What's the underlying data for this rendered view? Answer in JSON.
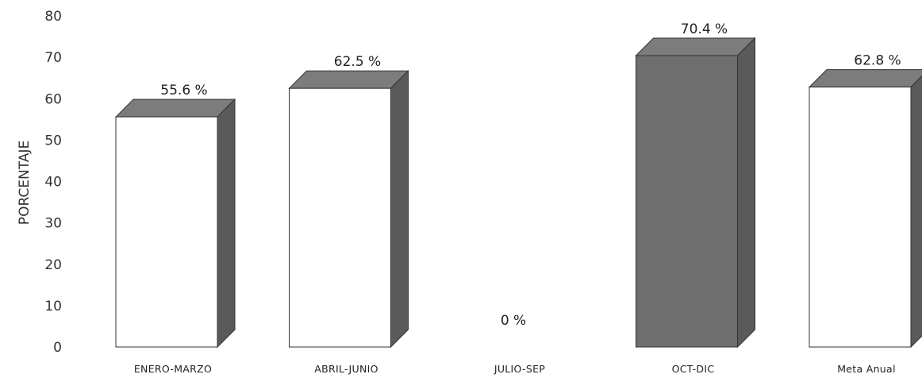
{
  "chart_data": {
    "type": "bar",
    "title": "",
    "xlabel": "",
    "ylabel": "PORCENTAJE",
    "ylim": [
      0,
      80
    ],
    "yticks": [
      "0",
      "10",
      "20",
      "30",
      "40",
      "50",
      "60",
      "70",
      "80"
    ],
    "categories": [
      "ENERO-MARZO",
      "ABRIL-JUNIO",
      "JULIO-SEP",
      "OCT-DIC",
      "Meta Anual"
    ],
    "values": [
      55.6,
      62.5,
      0,
      70.4,
      62.8
    ],
    "value_labels": [
      "55.6 %",
      "62.5 %",
      "0 %",
      "70.4 %",
      "62.8 %"
    ],
    "bar_fills": [
      "#ffffff",
      "#ffffff",
      "#ffffff",
      "#6e6e6e",
      "#ffffff"
    ],
    "side_color": "#5a5a5a",
    "top_color": "#7c7c7c",
    "grid": false,
    "style": "3d-bar"
  }
}
